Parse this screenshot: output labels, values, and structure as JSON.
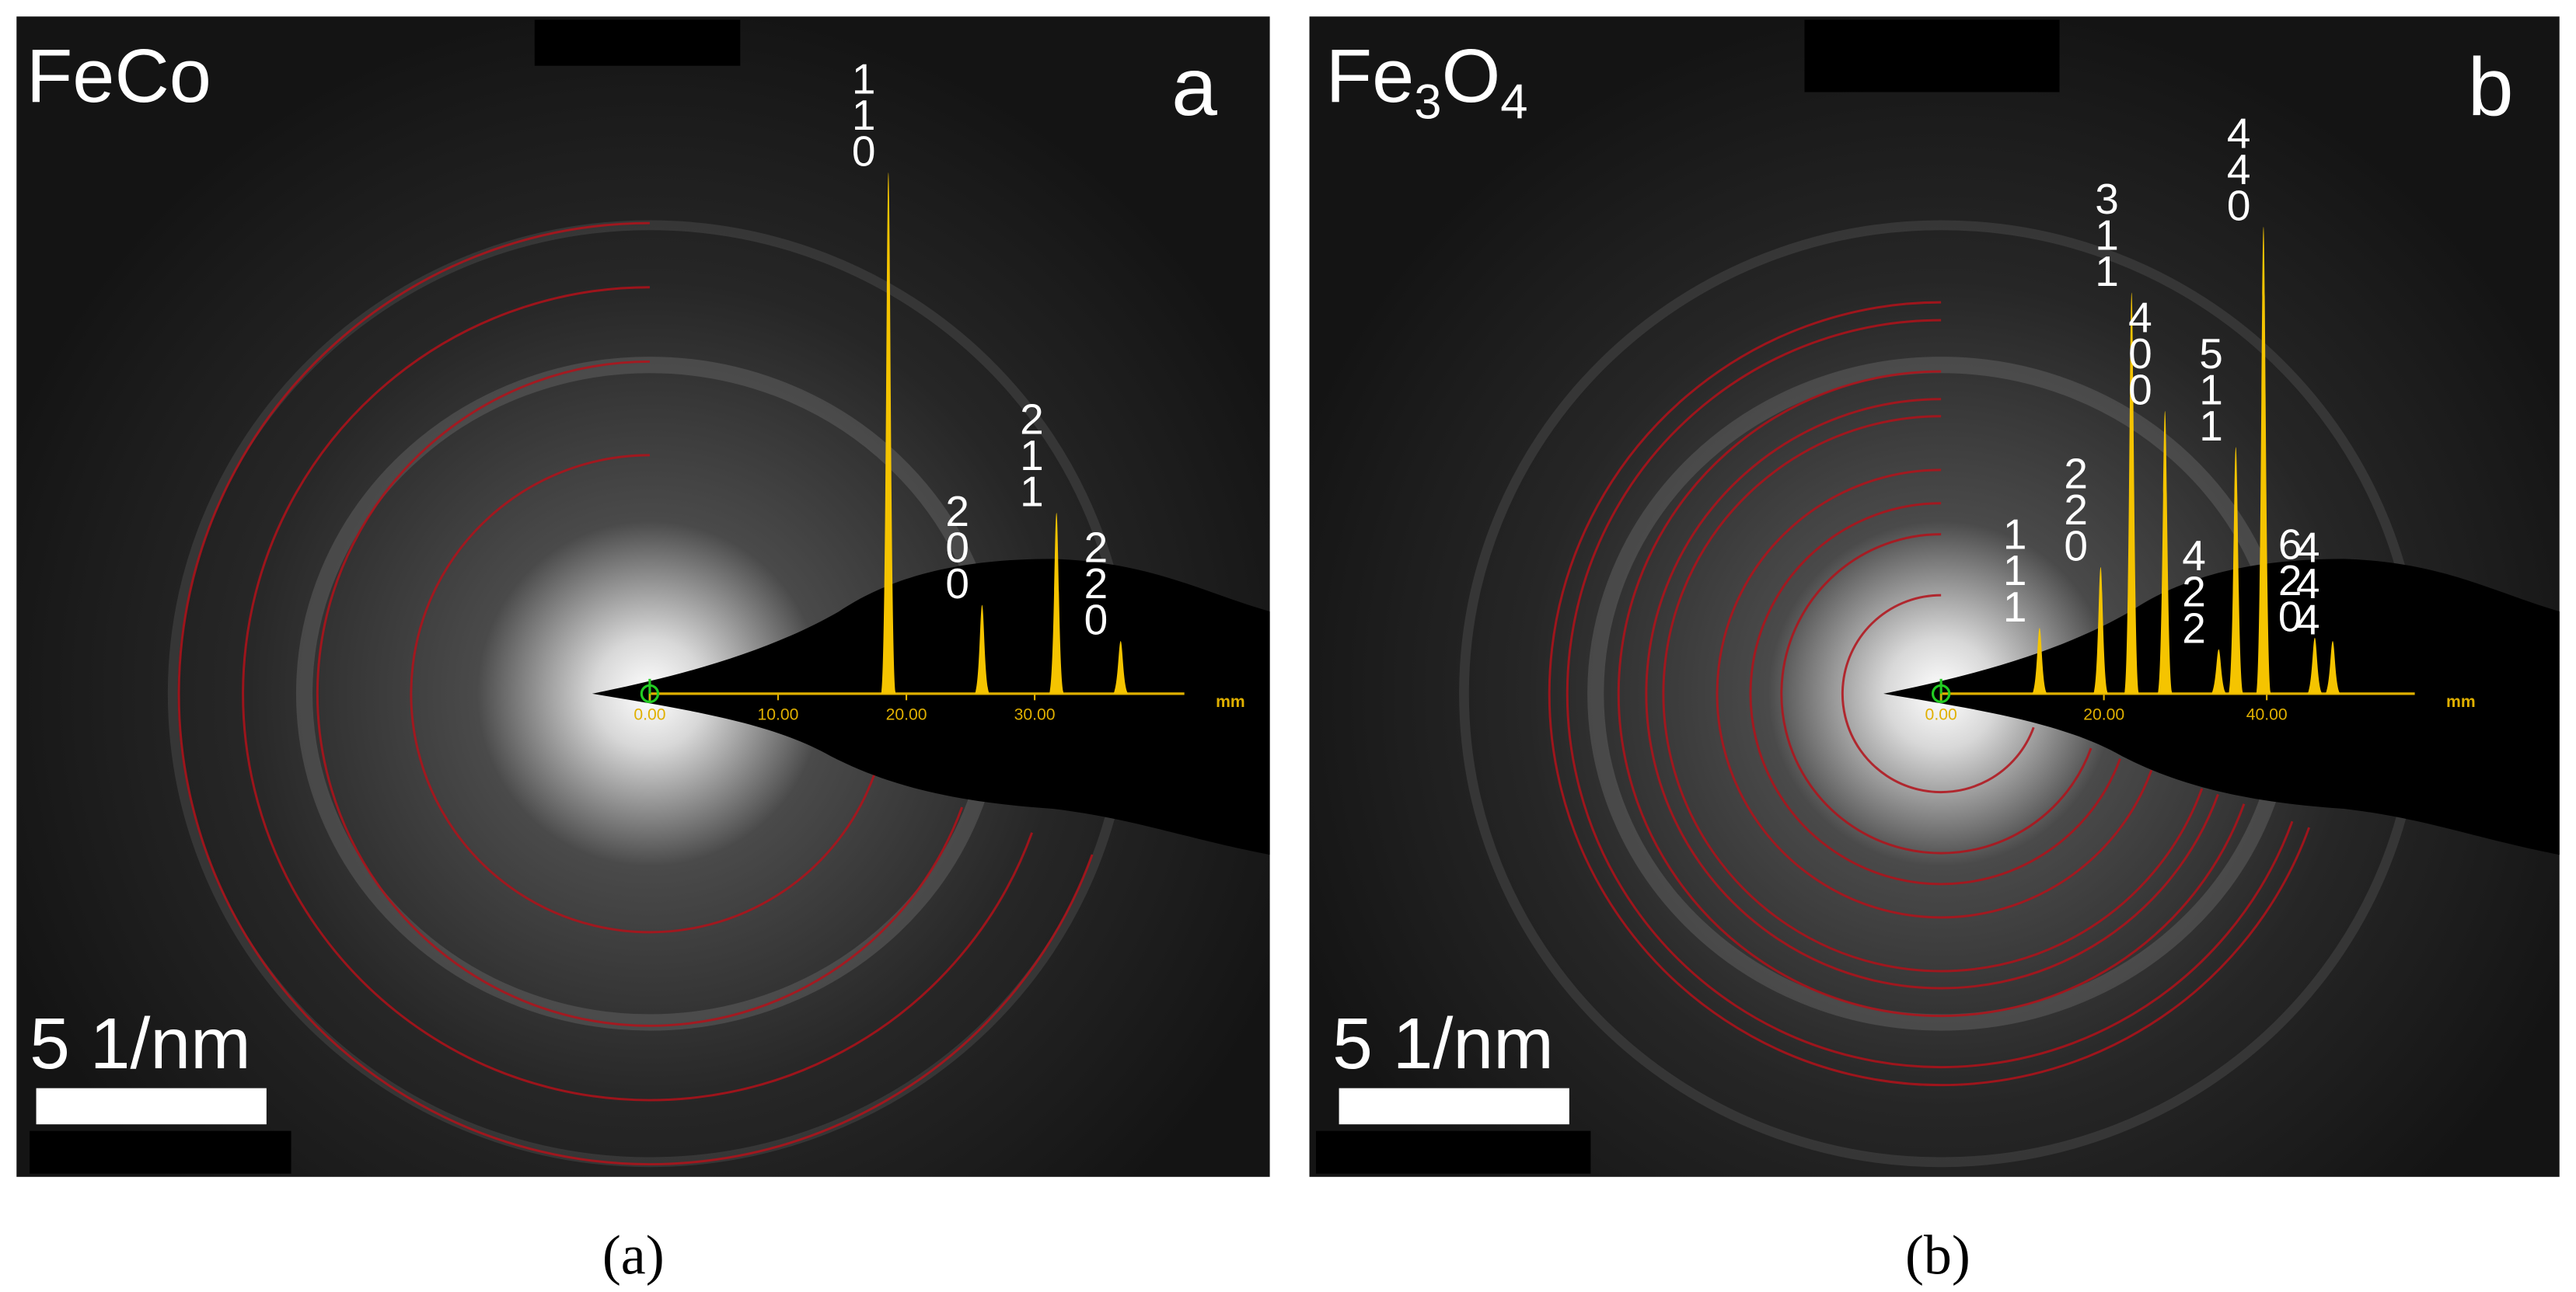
{
  "panels": [
    {
      "sample": "FeCo",
      "letter": "a",
      "scale_bar": "5 1/nm",
      "caption": "(a)",
      "axis_unit": "mm",
      "ticks": [
        {
          "value": 0,
          "label": "0.00"
        },
        {
          "value": 10,
          "label": "10.00"
        },
        {
          "value": 20,
          "label": "20.00"
        },
        {
          "value": 30,
          "label": "30.00"
        }
      ],
      "peaks": [
        {
          "hkl": "110",
          "position": 18.6,
          "intensity": 317
        },
        {
          "hkl": "200",
          "position": 25.9,
          "intensity": 54
        },
        {
          "hkl": "211",
          "position": 31.7,
          "intensity": 110
        },
        {
          "hkl": "220",
          "position": 36.7,
          "intensity": 32
        }
      ]
    },
    {
      "sample": "Fe3O4",
      "letter": "b",
      "scale_bar": "5 1/nm",
      "caption": "(b)",
      "axis_unit": "mm",
      "ticks": [
        {
          "value": 0,
          "label": "0.00"
        },
        {
          "value": 20,
          "label": "20.00"
        },
        {
          "value": 40,
          "label": "40.00"
        }
      ],
      "peaks": [
        {
          "hkl": "111",
          "position": 12.1,
          "intensity": 40
        },
        {
          "hkl": "220",
          "position": 19.6,
          "intensity": 77
        },
        {
          "hkl": "311",
          "position": 23.4,
          "intensity": 244
        },
        {
          "hkl": "400",
          "position": 27.5,
          "intensity": 172
        },
        {
          "hkl": "422",
          "position": 34.1,
          "intensity": 27
        },
        {
          "hkl": "511",
          "position": 36.2,
          "intensity": 150
        },
        {
          "hkl": "440",
          "position": 39.6,
          "intensity": 284
        },
        {
          "hkl": "620",
          "position": 45.9,
          "intensity": 34
        },
        {
          "hkl": "444",
          "position": 48.1,
          "intensity": 32
        }
      ]
    }
  ]
}
